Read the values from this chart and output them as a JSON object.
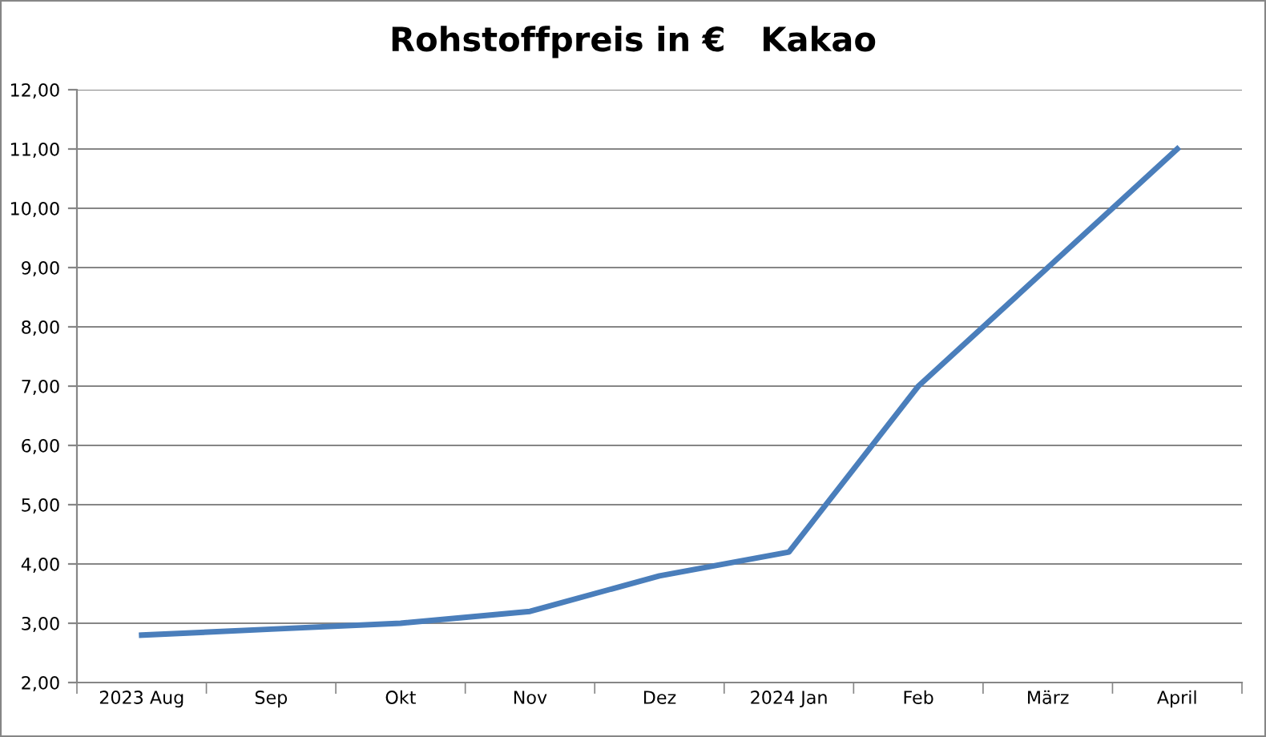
{
  "chart_data": {
    "type": "line",
    "title": "Rohstoffpreis in €   Kakao",
    "categories": [
      "2023 Aug",
      "Sep",
      "Okt",
      "Nov",
      "Dez",
      "2024 Jan",
      "Feb",
      "März",
      "April"
    ],
    "series": [
      {
        "color": "#4a7ebb",
        "values": [
          2.8,
          2.9,
          3.0,
          3.2,
          3.8,
          4.2,
          7.0,
          9.0,
          11.0
        ]
      }
    ],
    "ylim": [
      2,
      12
    ],
    "yticks": [
      {
        "value": 2,
        "label": "2,00"
      },
      {
        "value": 3,
        "label": "3,00"
      },
      {
        "value": 4,
        "label": "4,00"
      },
      {
        "value": 5,
        "label": "5,00"
      },
      {
        "value": 6,
        "label": "6,00"
      },
      {
        "value": 7,
        "label": "7,00"
      },
      {
        "value": 8,
        "label": "8,00"
      },
      {
        "value": 9,
        "label": "9,00"
      },
      {
        "value": 10,
        "label": "10,00"
      },
      {
        "value": 11,
        "label": "11,00"
      },
      {
        "value": 12,
        "label": "12,00"
      }
    ],
    "grid": "y",
    "legend": false,
    "marker": "none",
    "line_style": "solid"
  }
}
